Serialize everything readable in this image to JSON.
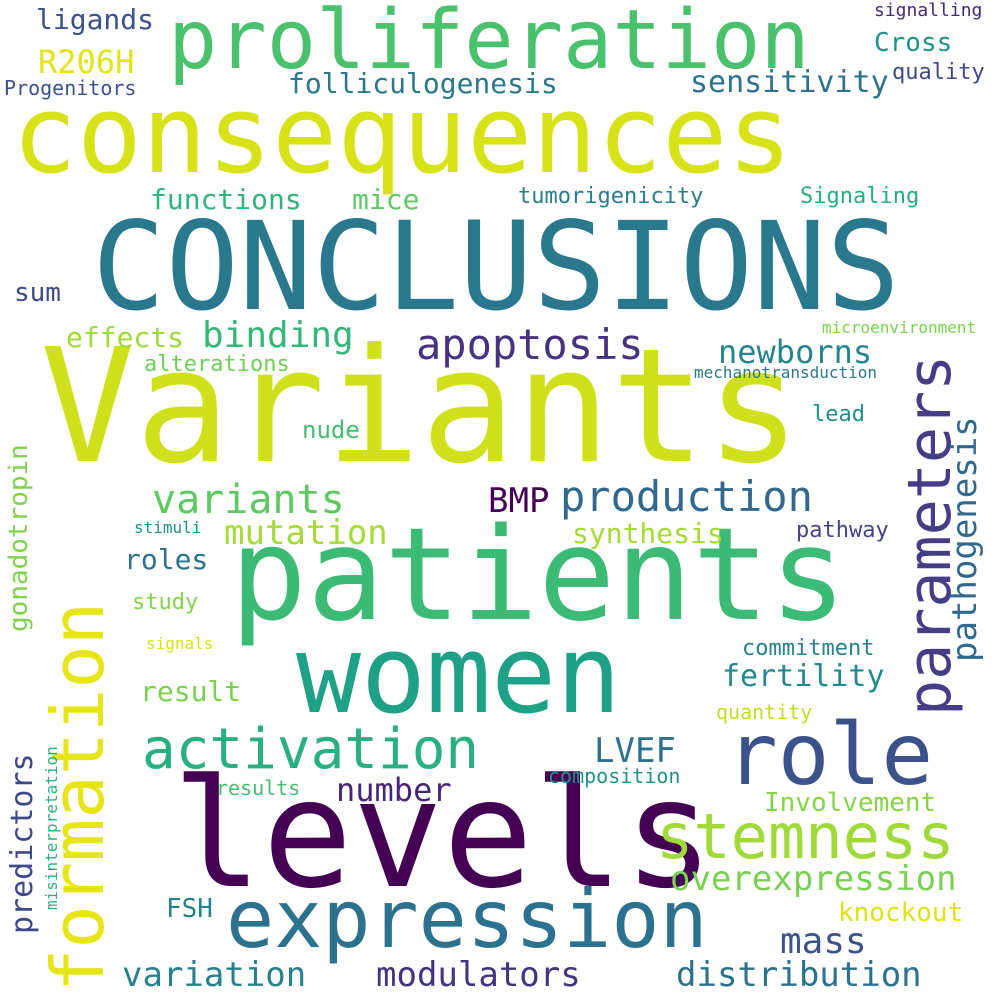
{
  "words": [
    {
      "text": "consequences",
      "color": "#d8e219"
    },
    {
      "text": "CONCLUSIONS",
      "color": "#2a788e"
    },
    {
      "text": "Variants",
      "color": "#d0e11c"
    },
    {
      "text": "patients",
      "color": "#3bbb75"
    },
    {
      "text": "proliferation",
      "color": "#4ac16d"
    },
    {
      "text": "women",
      "color": "#1fa187"
    },
    {
      "text": "levels",
      "color": "#440154"
    },
    {
      "text": "expression",
      "color": "#2c728e"
    },
    {
      "text": "role",
      "color": "#3b528b"
    },
    {
      "text": "formation",
      "color": "#e7e419"
    },
    {
      "text": "parameters",
      "color": "#433e85"
    },
    {
      "text": "stemness",
      "color": "#a0da39"
    },
    {
      "text": "activation",
      "color": "#2ab07f"
    },
    {
      "text": "variants",
      "color": "#5ec962"
    },
    {
      "text": "apoptosis",
      "color": "#46327e"
    },
    {
      "text": "production",
      "color": "#31688e"
    },
    {
      "text": "pathogenesis",
      "color": "#31688e"
    },
    {
      "text": "binding",
      "color": "#35b779"
    },
    {
      "text": "newborns",
      "color": "#25858e"
    },
    {
      "text": "mutation",
      "color": "#a5db36"
    },
    {
      "text": "BMP",
      "color": "#440154"
    },
    {
      "text": "overexpression",
      "color": "#7ad151"
    },
    {
      "text": "mass",
      "color": "#3b528b"
    },
    {
      "text": "modulators",
      "color": "#46337e"
    },
    {
      "text": "variation",
      "color": "#26828e"
    },
    {
      "text": "distribution",
      "color": "#2c728e"
    },
    {
      "text": "number",
      "color": "#482677"
    },
    {
      "text": "sensitivity",
      "color": "#2c728e"
    },
    {
      "text": "folliculogenesis",
      "color": "#2a788e"
    },
    {
      "text": "R206H",
      "color": "#e2e418"
    },
    {
      "text": "ligands",
      "color": "#3b528b"
    },
    {
      "text": "Cross",
      "color": "#21918c"
    },
    {
      "text": "quality",
      "color": "#3e4989"
    },
    {
      "text": "signalling",
      "color": "#482878"
    },
    {
      "text": "Progenitors",
      "color": "#3b528b"
    },
    {
      "text": "functions",
      "color": "#2fb47c"
    },
    {
      "text": "mice",
      "color": "#5ec962"
    },
    {
      "text": "tumorigenicity",
      "color": "#287d8e"
    },
    {
      "text": "Signaling",
      "color": "#27ad81"
    },
    {
      "text": "sum",
      "color": "#3e4989"
    },
    {
      "text": "effects",
      "color": "#a0da39"
    },
    {
      "text": "alterations",
      "color": "#6ece58"
    },
    {
      "text": "microenvironment",
      "color": "#7ad151"
    },
    {
      "text": "mechanotransduction",
      "color": "#2a788e"
    },
    {
      "text": "lead",
      "color": "#218e8d"
    },
    {
      "text": "nude",
      "color": "#44bf70"
    },
    {
      "text": "gonadotropin",
      "color": "#7fd34e"
    },
    {
      "text": "stimuli",
      "color": "#21918c"
    },
    {
      "text": "synthesis",
      "color": "#a5db36"
    },
    {
      "text": "pathway",
      "color": "#414487"
    },
    {
      "text": "roles",
      "color": "#2c728e"
    },
    {
      "text": "study",
      "color": "#84d44b"
    },
    {
      "text": "signals",
      "color": "#d5e21a"
    },
    {
      "text": "commitment",
      "color": "#26828e"
    },
    {
      "text": "fertility",
      "color": "#23898e"
    },
    {
      "text": "result",
      "color": "#7ad151"
    },
    {
      "text": "LVEF",
      "color": "#2c728e"
    },
    {
      "text": "quantity",
      "color": "#bddf26"
    },
    {
      "text": "predictors",
      "color": "#3e4989"
    },
    {
      "text": "misinterpretation",
      "color": "#2ab07f"
    },
    {
      "text": "results",
      "color": "#44bf70"
    },
    {
      "text": "composition",
      "color": "#21918c"
    },
    {
      "text": "Involvement",
      "color": "#86d549"
    },
    {
      "text": "FSH",
      "color": "#26828e"
    },
    {
      "text": "knockout",
      "color": "#dde318"
    }
  ]
}
